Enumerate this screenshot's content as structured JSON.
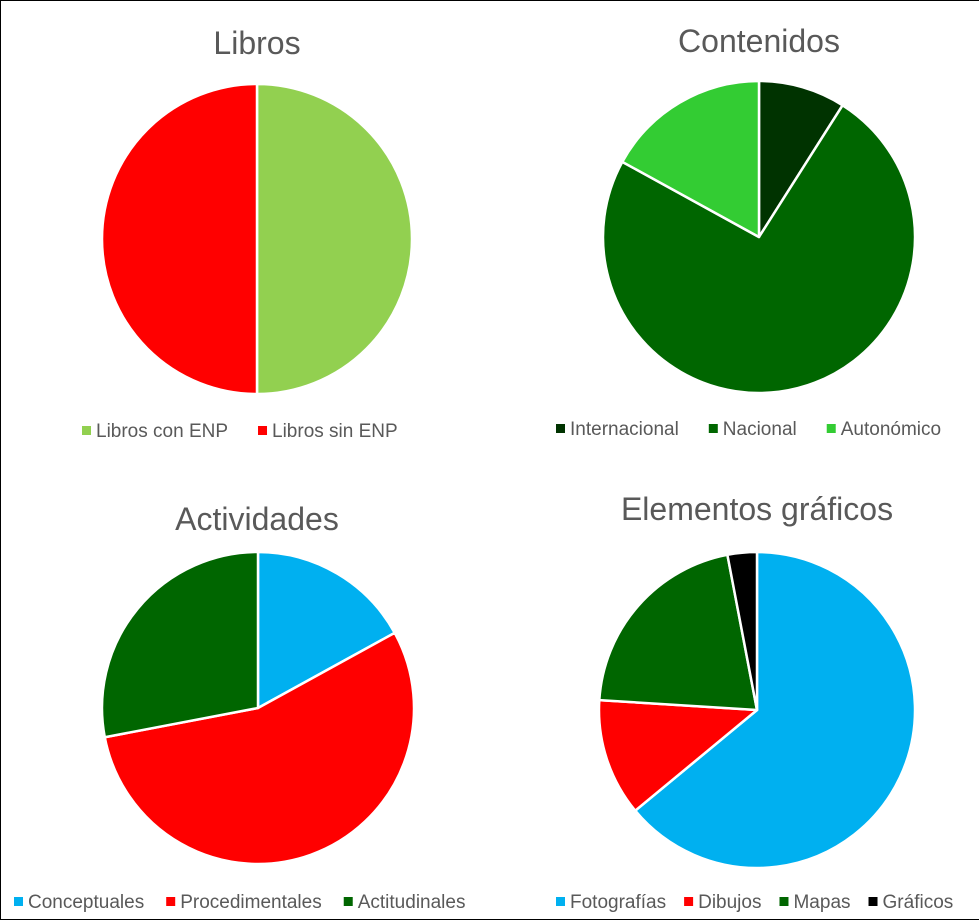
{
  "chart_data": [
    {
      "type": "pie",
      "title": "Libros",
      "categories": [
        "Libros con ENP",
        "Libros sin ENP"
      ],
      "values": [
        50,
        50
      ],
      "colors": [
        "#92d050",
        "#ff0000"
      ],
      "legend": "bottom"
    },
    {
      "type": "pie",
      "title": "Contenidos",
      "categories": [
        "Internacional",
        "Nacional",
        "Autonómico"
      ],
      "values": [
        9,
        74,
        17
      ],
      "colors": [
        "#003300",
        "#006600",
        "#33cc33"
      ],
      "legend": "bottom"
    },
    {
      "type": "pie",
      "title": "Actividades",
      "categories": [
        "Conceptuales",
        "Procedimentales",
        "Actitudinales"
      ],
      "values": [
        17,
        55,
        28
      ],
      "colors": [
        "#00b0f0",
        "#ff0000",
        "#006600"
      ],
      "legend": "bottom"
    },
    {
      "type": "pie",
      "title": "Elementos gráficos",
      "categories": [
        "Fotografías",
        "Dibujos",
        "Mapas",
        "Gráficos"
      ],
      "values": [
        64,
        12,
        21,
        3
      ],
      "colors": [
        "#00b0f0",
        "#ff0000",
        "#006600",
        "#000000"
      ],
      "legend": "bottom"
    }
  ]
}
